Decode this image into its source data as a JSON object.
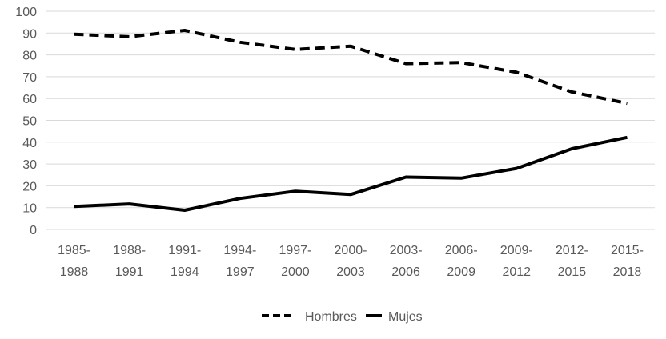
{
  "chart_data": {
    "type": "line",
    "categories": [
      [
        "1985-",
        "1988"
      ],
      [
        "1988-",
        "1991"
      ],
      [
        "1991-",
        "1994"
      ],
      [
        "1994-",
        "1997"
      ],
      [
        "1997-",
        "2000"
      ],
      [
        "2000-",
        "2003"
      ],
      [
        "2003-",
        "2006"
      ],
      [
        "2006-",
        "2009"
      ],
      [
        "2009-",
        "2012"
      ],
      [
        "2012-",
        "2015"
      ],
      [
        "2015-",
        "2018"
      ]
    ],
    "ylim": [
      0,
      100
    ],
    "yticks": [
      0,
      10,
      20,
      30,
      40,
      50,
      60,
      70,
      80,
      90,
      100
    ],
    "grid": true,
    "legend_position": "bottom",
    "series": [
      {
        "name": "Hombres",
        "style": "dashed",
        "color": "#000000",
        "values": [
          89.5,
          88.3,
          91.2,
          85.8,
          82.5,
          84.0,
          76.0,
          76.5,
          72.0,
          63.0,
          57.8
        ]
      },
      {
        "name": "Mujes",
        "style": "solid",
        "color": "#000000",
        "values": [
          10.5,
          11.7,
          8.8,
          14.2,
          17.5,
          16.0,
          24.0,
          23.5,
          28.0,
          37.0,
          42.2
        ]
      }
    ]
  }
}
